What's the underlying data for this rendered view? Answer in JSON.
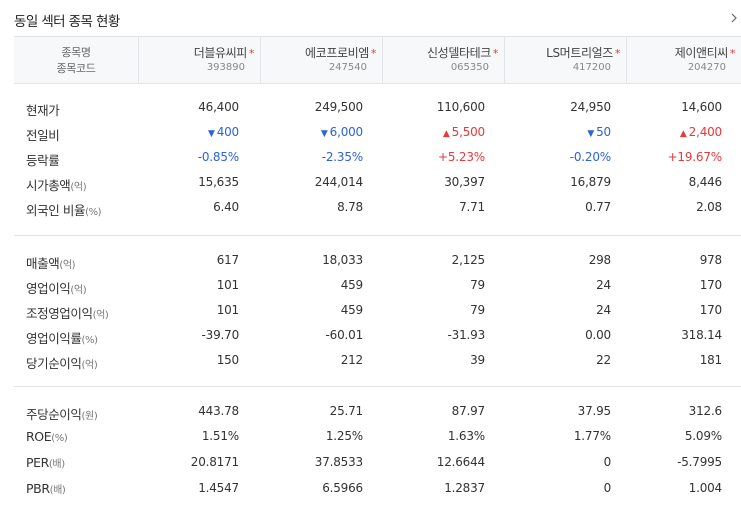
{
  "title": "동일 섹터 종목 현황",
  "header": {
    "label1": "종목명",
    "label2": "종목코드"
  },
  "companies": [
    {
      "name": "더블유씨피",
      "code": "393890"
    },
    {
      "name": "에코프로비엠",
      "code": "247540"
    },
    {
      "name": "신성델타테크",
      "code": "065350"
    },
    {
      "name": "LS머트리얼즈",
      "code": "417200"
    },
    {
      "name": "제이앤티씨",
      "code": "204270"
    }
  ],
  "star": "*",
  "colors": {
    "up": "#e5393b",
    "down": "#2d63d5"
  },
  "rows": [
    {
      "label": "현재가",
      "unit": "",
      "values": [
        "46,400",
        "249,500",
        "110,600",
        "24,950",
        "14,600"
      ]
    },
    {
      "label": "전일비",
      "unit": "",
      "values": [
        "400",
        "6,000",
        "5,500",
        "50",
        "2,400"
      ],
      "dirs": [
        "down",
        "down",
        "up",
        "down",
        "up"
      ]
    },
    {
      "label": "등락률",
      "unit": "",
      "values": [
        "-0.85%",
        "-2.35%",
        "+5.23%",
        "-0.20%",
        "+19.67%"
      ],
      "dirs": [
        "down",
        "down",
        "up",
        "down",
        "up"
      ]
    },
    {
      "label": "시가총액",
      "unit": "(억)",
      "values": [
        "15,635",
        "244,014",
        "30,397",
        "16,879",
        "8,446"
      ]
    },
    {
      "label": "외국인 비율",
      "unit": "(%)",
      "values": [
        "6.40",
        "8.78",
        "7.71",
        "0.77",
        "2.08"
      ]
    },
    {
      "label": "매출액",
      "unit": "(억)",
      "values": [
        "617",
        "18,033",
        "2,125",
        "298",
        "978"
      ]
    },
    {
      "label": "영업이익",
      "unit": "(억)",
      "values": [
        "101",
        "459",
        "79",
        "24",
        "170"
      ]
    },
    {
      "label": "조정영업이익",
      "unit": "(억)",
      "values": [
        "101",
        "459",
        "79",
        "24",
        "170"
      ]
    },
    {
      "label": "영업이익률",
      "unit": "(%)",
      "values": [
        "-39.70",
        "-60.01",
        "-31.93",
        "0.00",
        "318.14"
      ]
    },
    {
      "label": "당기순이익",
      "unit": "(억)",
      "values": [
        "150",
        "212",
        "39",
        "22",
        "181"
      ]
    },
    {
      "label": "주당순이익",
      "unit": "(원)",
      "values": [
        "443.78",
        "25.71",
        "87.97",
        "37.95",
        "312.6"
      ]
    },
    {
      "label": "ROE",
      "unit": "(%)",
      "values": [
        "1.51%",
        "1.25%",
        "1.63%",
        "1.77%",
        "5.09%"
      ]
    },
    {
      "label": "PER",
      "unit": "(배)",
      "values": [
        "20.8171",
        "37.8533",
        "12.6644",
        "0",
        "-5.7995"
      ]
    },
    {
      "label": "PBR",
      "unit": "(배)",
      "values": [
        "1.4547",
        "6.5966",
        "1.2837",
        "0",
        "1.004"
      ]
    }
  ]
}
